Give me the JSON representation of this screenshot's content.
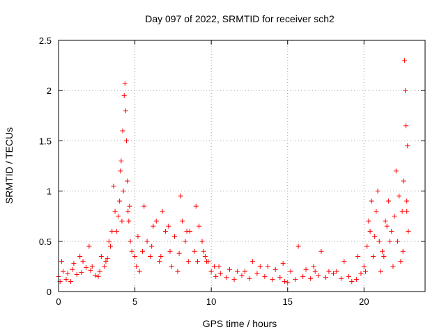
{
  "chart_data": {
    "type": "scatter",
    "title": "Day 097 of 2022, SRMTID for receiver sch2",
    "xlabel": "GPS time / hours",
    "ylabel": "SRMTID / TECUs",
    "xlim": [
      0,
      24
    ],
    "ylim": [
      0,
      2.5
    ],
    "xticks": [
      0,
      5,
      10,
      15,
      20
    ],
    "yticks": [
      0,
      0.5,
      1,
      1.5,
      2,
      2.5
    ],
    "xtick_labels": [
      "0",
      "5",
      "10",
      "15",
      "20"
    ],
    "ytick_labels": [
      "0",
      "0.5",
      "1",
      "1.5",
      "2",
      "2.5"
    ],
    "grid": true,
    "marker": "+",
    "color": "#ff0000",
    "series": [
      {
        "name": "sch2",
        "x": [
          0.0,
          0.3,
          0.6,
          0.9,
          1.2,
          1.5,
          1.8,
          2.1,
          2.4,
          2.7,
          3.0,
          3.2,
          3.4,
          3.6,
          3.8,
          3.9,
          4.0,
          4.1,
          4.2,
          4.3,
          4.35,
          4.4,
          4.45,
          4.5,
          4.6,
          4.7,
          4.8,
          5.0,
          5.2,
          5.5,
          5.8,
          6.1,
          6.4,
          6.7,
          7.0,
          7.3,
          7.6,
          7.9,
          8.1,
          8.3,
          8.6,
          8.9,
          9.2,
          9.4,
          9.6,
          9.8,
          10.0,
          10.3,
          10.6,
          11.0,
          11.5,
          12.0,
          12.5,
          13.0,
          13.5,
          14.0,
          14.5,
          14.8,
          15.0,
          15.5,
          16.0,
          16.5,
          16.8,
          17.0,
          17.5,
          18.0,
          18.5,
          19.0,
          19.5,
          19.8,
          20.0,
          20.2,
          20.4,
          20.6,
          20.8,
          21.0,
          21.2,
          21.4,
          21.6,
          21.8,
          22.0,
          22.2,
          22.4,
          22.5,
          22.6,
          22.65,
          22.7,
          22.75,
          22.8,
          22.9,
          0.1,
          0.5,
          1.0,
          1.6,
          2.2,
          2.8,
          3.3,
          3.7,
          4.05,
          4.25,
          4.55,
          5.1,
          5.6,
          6.2,
          6.8,
          7.4,
          8.0,
          8.5,
          9.0,
          9.5,
          10.2,
          11.2,
          12.2,
          13.2,
          14.2,
          15.2,
          16.2,
          17.2,
          18.2,
          19.2,
          20.1,
          20.5,
          20.9,
          21.3,
          21.7,
          22.1,
          22.55,
          22.85,
          0.2,
          0.8,
          1.4,
          2.0,
          2.6,
          3.1,
          3.5,
          4.15,
          4.65,
          5.3,
          6.0,
          6.6,
          7.2,
          7.8,
          8.4,
          9.1,
          9.7,
          10.5,
          11.7,
          12.7,
          13.7,
          14.7,
          15.7,
          16.7,
          17.7,
          18.7,
          19.6,
          20.3,
          20.7,
          21.1,
          21.5,
          21.9,
          22.3,
          22.8
        ],
        "y": [
          0.15,
          0.2,
          0.18,
          0.22,
          0.17,
          0.19,
          0.24,
          0.21,
          0.16,
          0.2,
          0.25,
          0.33,
          0.45,
          1.05,
          0.6,
          0.75,
          0.9,
          1.3,
          1.6,
          1.95,
          2.07,
          1.8,
          1.5,
          1.1,
          0.7,
          0.5,
          0.4,
          0.35,
          0.55,
          0.4,
          0.5,
          0.45,
          0.7,
          0.35,
          0.6,
          0.4,
          0.55,
          0.38,
          0.7,
          0.5,
          0.6,
          0.4,
          0.65,
          0.5,
          0.35,
          0.3,
          0.2,
          0.15,
          0.18,
          0.14,
          0.12,
          0.16,
          0.13,
          0.18,
          0.15,
          0.12,
          0.14,
          0.1,
          0.09,
          0.12,
          0.15,
          0.13,
          0.2,
          0.16,
          0.14,
          0.18,
          0.13,
          0.15,
          0.12,
          0.18,
          0.25,
          0.45,
          0.6,
          0.35,
          0.8,
          0.5,
          0.4,
          0.7,
          0.9,
          0.6,
          0.75,
          0.5,
          0.3,
          0.8,
          1.1,
          2.3,
          2.0,
          1.65,
          0.9,
          0.6,
          0.1,
          0.12,
          0.28,
          0.3,
          0.25,
          0.35,
          0.5,
          0.8,
          1.2,
          1.0,
          0.8,
          0.25,
          0.85,
          0.65,
          0.8,
          0.25,
          0.95,
          0.3,
          0.85,
          0.4,
          0.25,
          0.22,
          0.2,
          0.25,
          0.22,
          0.2,
          0.22,
          0.4,
          0.2,
          0.1,
          0.2,
          0.9,
          1.0,
          0.35,
          0.5,
          1.2,
          0.4,
          1.45,
          0.3,
          0.1,
          0.35,
          0.45,
          0.15,
          0.3,
          0.6,
          0.7,
          0.85,
          0.2,
          0.35,
          0.3,
          0.65,
          0.2,
          0.6,
          0.3,
          0.3,
          0.25,
          0.2,
          0.3,
          0.25,
          0.28,
          0.45,
          0.25,
          0.2,
          0.3,
          0.35,
          0.7,
          0.55,
          0.2,
          0.65,
          0.25,
          0.95,
          0.8
        ]
      }
    ]
  }
}
